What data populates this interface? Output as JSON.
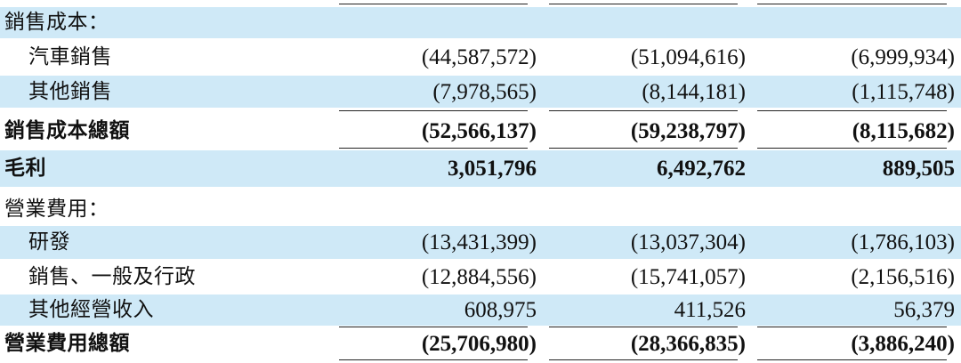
{
  "sections": {
    "cost_of_sales": {
      "heading": "銷售成本：",
      "vehicle_sales": {
        "label": "汽車銷售",
        "values": [
          "(44,587,572)",
          "(51,094,616)",
          "(6,999,934)"
        ]
      },
      "other_sales": {
        "label": "其他銷售",
        "values": [
          "(7,978,565)",
          "(8,144,181)",
          "(1,115,748)"
        ]
      },
      "total": {
        "label": "銷售成本總額",
        "values": [
          "(52,566,137)",
          "(59,238,797)",
          "(8,115,682)"
        ]
      }
    },
    "gross_profit": {
      "label": "毛利",
      "values": [
        "3,051,796",
        "6,492,762",
        "889,505"
      ]
    },
    "operating_expenses": {
      "heading": "營業費用：",
      "rnd": {
        "label": "研發",
        "values": [
          "(13,431,399)",
          "(13,037,304)",
          "(1,786,103)"
        ]
      },
      "sga": {
        "label": "銷售、一般及行政",
        "values": [
          "(12,884,556)",
          "(15,741,057)",
          "(2,156,516)"
        ]
      },
      "other_income": {
        "label": "其他經營收入",
        "values": [
          "608,975",
          "411,526",
          "56,379"
        ]
      },
      "total": {
        "label": "營業費用總額",
        "values": [
          "(25,706,980)",
          "(28,366,835)",
          "(3,886,240)"
        ]
      }
    }
  }
}
